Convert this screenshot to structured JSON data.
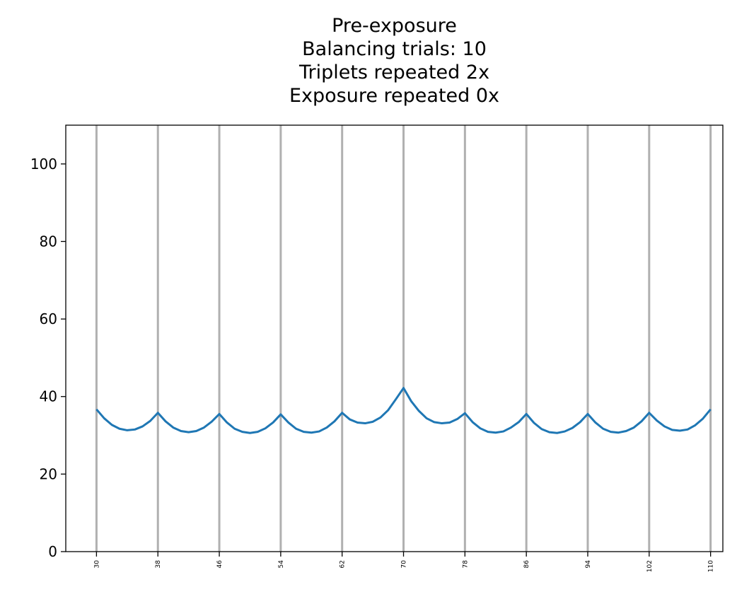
{
  "chart_data": {
    "type": "line",
    "title_lines": [
      "Pre-exposure",
      "Balancing trials: 10",
      "Triplets repeated 2x",
      "Exposure repeated 0x"
    ],
    "xlabel": "",
    "ylabel": "",
    "xlim": [
      26,
      111.6
    ],
    "ylim": [
      0,
      110
    ],
    "grid": "vertical",
    "line_color": "#1f77b4",
    "grid_color": "#b0b0b0",
    "xticks": [
      30,
      38,
      46,
      54,
      62,
      70,
      78,
      86,
      94,
      102,
      110
    ],
    "yticks": [
      0,
      20,
      40,
      60,
      80,
      100
    ],
    "series": [
      {
        "x": [
          30,
          31,
          32,
          33,
          34,
          35,
          36,
          37,
          38,
          39,
          40,
          41,
          42,
          43,
          44,
          45,
          46,
          47,
          48,
          49,
          50,
          51,
          52,
          53,
          54,
          55,
          56,
          57,
          58,
          59,
          60,
          61,
          62,
          63,
          64,
          65,
          66,
          67,
          68,
          69,
          70,
          71,
          72,
          73,
          74,
          75,
          76,
          77,
          78,
          79,
          80,
          81,
          82,
          83,
          84,
          85,
          86,
          87,
          88,
          89,
          90,
          91,
          92,
          93,
          94,
          95,
          96,
          97,
          98,
          99,
          100,
          101,
          102,
          103,
          104,
          105,
          106,
          107,
          108,
          109,
          110
        ],
        "y": [
          36.7,
          34.4,
          32.7,
          31.7,
          31.3,
          31.5,
          32.3,
          33.7,
          35.8,
          33.6,
          32.0,
          31.1,
          30.8,
          31.1,
          32.0,
          33.5,
          35.5,
          33.3,
          31.7,
          30.9,
          30.6,
          30.9,
          31.8,
          33.3,
          35.4,
          33.3,
          31.7,
          30.9,
          30.7,
          31.0,
          32.0,
          33.6,
          35.8,
          34.1,
          33.3,
          33.1,
          33.5,
          34.6,
          36.5,
          39.3,
          42.2,
          38.8,
          36.3,
          34.4,
          33.4,
          33.1,
          33.3,
          34.2,
          35.7,
          33.4,
          31.8,
          30.9,
          30.7,
          31.0,
          32.0,
          33.4,
          35.5,
          33.2,
          31.6,
          30.8,
          30.6,
          31.0,
          31.9,
          33.4,
          35.5,
          33.3,
          31.7,
          30.9,
          30.7,
          31.1,
          32.0,
          33.6,
          35.8,
          33.8,
          32.3,
          31.4,
          31.2,
          31.5,
          32.6,
          34.3,
          36.7
        ]
      }
    ]
  }
}
